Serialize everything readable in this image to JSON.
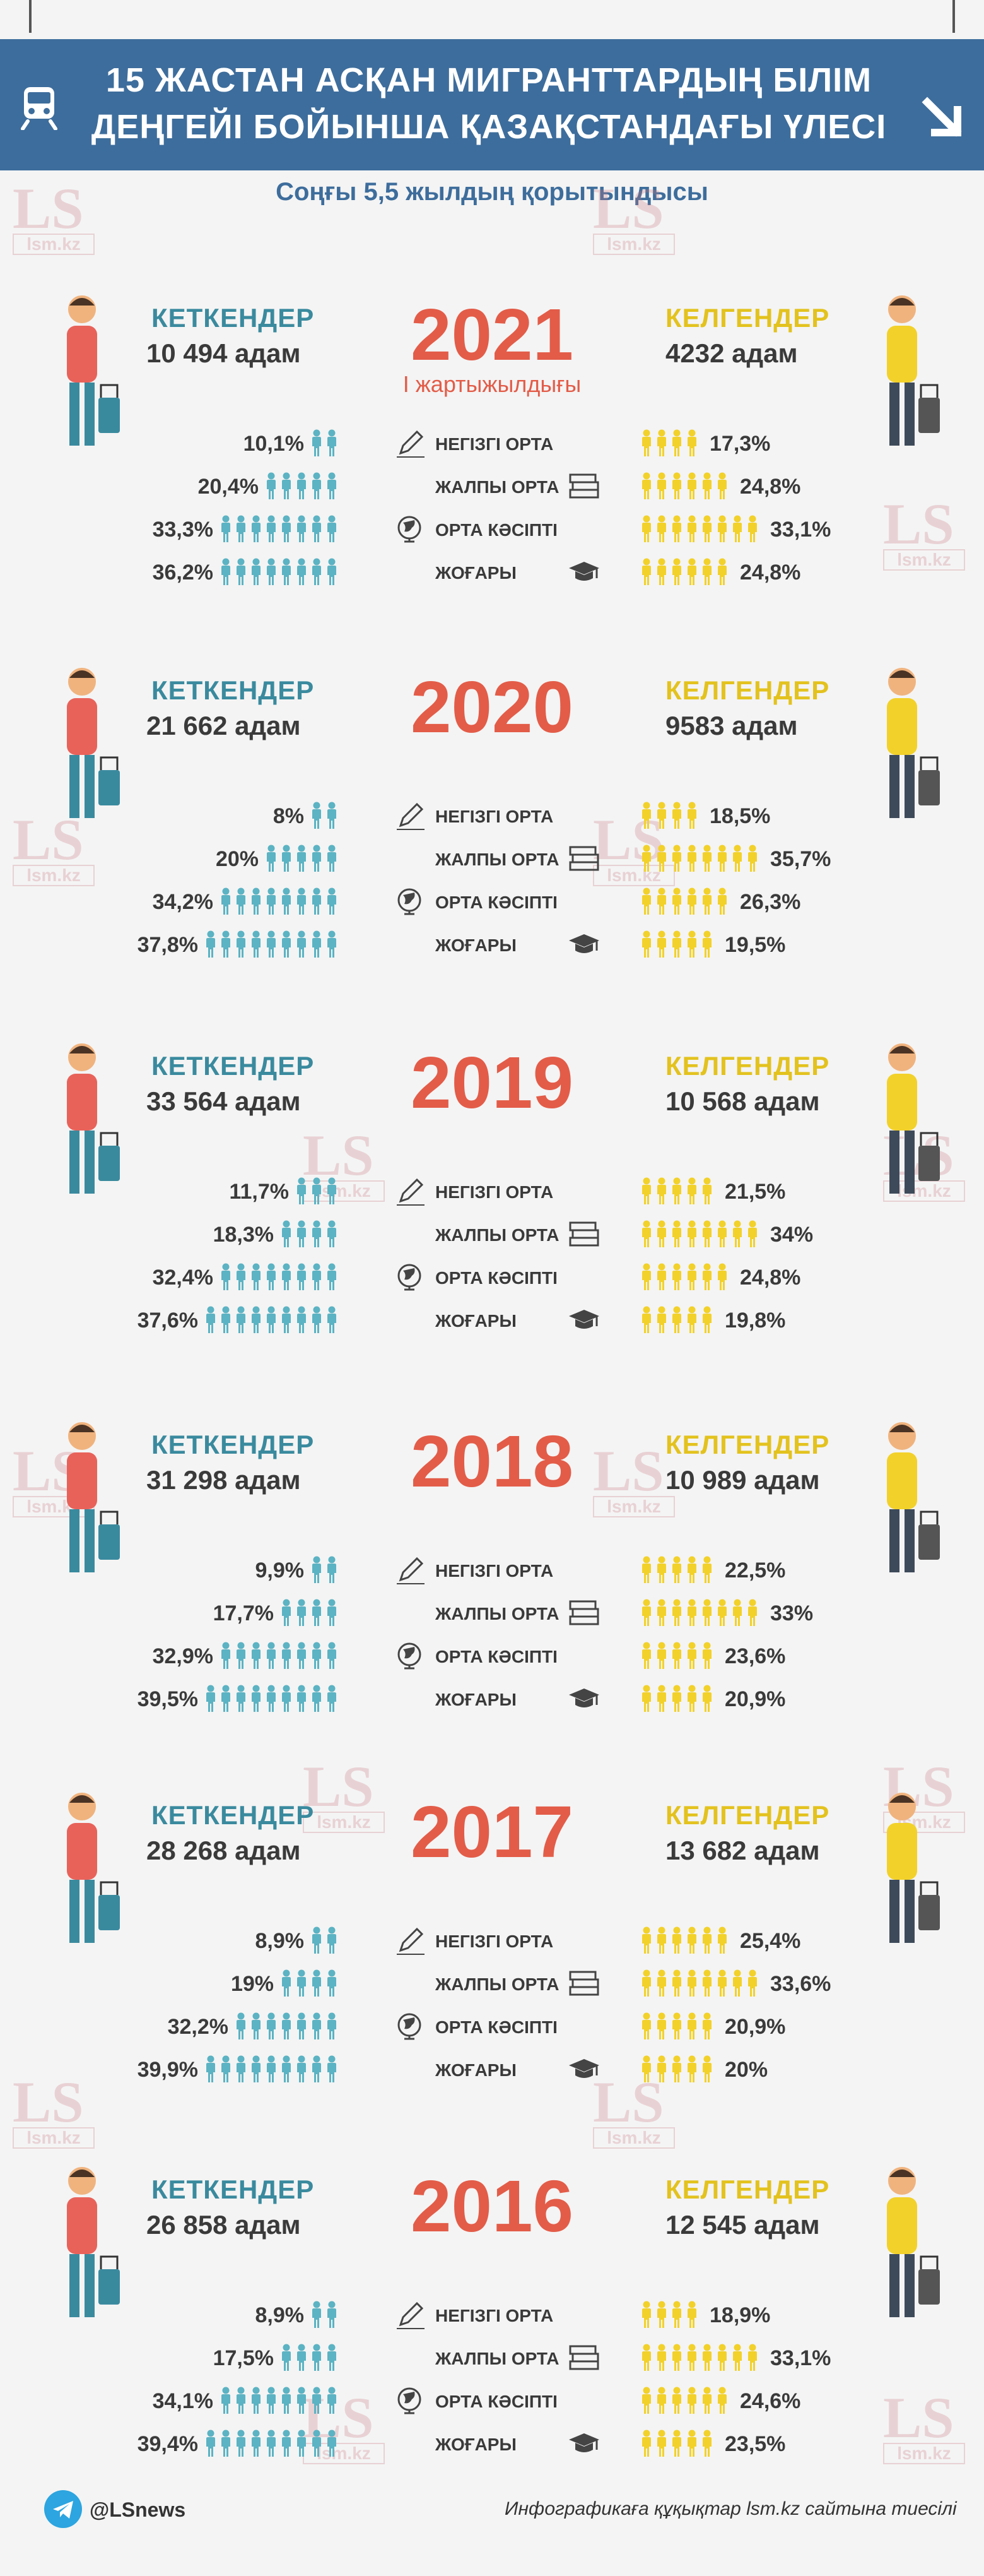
{
  "header": {
    "title_line1": "15 ЖАСТАН АСҚАН МИГРАНТТАРДЫҢ  БІЛІМ",
    "title_line2": "ДЕҢГЕЙІ БОЙЫНША ҚАЗАҚСТАНДАҒЫ ҮЛЕСІ",
    "subtitle": "Соңғы 5,5 жылдың қорытындысы",
    "train_icon": "train-icon",
    "arrow_icon": "arrow-down-right-icon",
    "color": "#3d6d9c"
  },
  "watermark": {
    "big": "LS",
    "small": "lsm.kz"
  },
  "labels": {
    "left_title": "КЕТКЕНДЕР",
    "right_title": "КЕЛГЕНДЕР",
    "categories": [
      "НЕГІЗГІ ОРТА",
      "ЖАЛПЫ ОРТА",
      "ОРТА КӘСІПТІ",
      "ЖОҒАРЫ"
    ],
    "category_icons": [
      "pencil-icon",
      "books-icon",
      "globe-icon",
      "graduation-cap-icon"
    ]
  },
  "colors": {
    "left": "#5bb3c3",
    "right": "#f2d12a",
    "year": "#e35c48",
    "left_title": "#3a8a9e",
    "right_title": "#e3c21e"
  },
  "chart_data": [
    {
      "type": "bar",
      "year": "2021",
      "note": "I жартыжылдығы",
      "left_count": "10 494 адам",
      "right_count": "4232 адам",
      "left": [
        10.1,
        20.4,
        33.3,
        36.2
      ],
      "left_labels": [
        "10,1%",
        "20,4%",
        "33,3%",
        "36,2%"
      ],
      "right": [
        17.3,
        24.8,
        33.1,
        24.8
      ],
      "right_labels": [
        "17,3%",
        "24,8%",
        "33,1%",
        "24,8%"
      ]
    },
    {
      "type": "bar",
      "year": "2020",
      "note": "",
      "left_count": "21 662 адам",
      "right_count": "9583 адам",
      "left": [
        8,
        20,
        34.2,
        37.8
      ],
      "left_labels": [
        "8%",
        "20%",
        "34,2%",
        "37,8%"
      ],
      "right": [
        18.5,
        35.7,
        26.3,
        19.5
      ],
      "right_labels": [
        "18,5%",
        "35,7%",
        "26,3%",
        "19,5%"
      ]
    },
    {
      "type": "bar",
      "year": "2019",
      "note": "",
      "left_count": "33 564 адам",
      "right_count": "10 568 адам",
      "left": [
        11.7,
        18.3,
        32.4,
        37.6
      ],
      "left_labels": [
        "11,7%",
        "18,3%",
        "32,4%",
        "37,6%"
      ],
      "right": [
        21.5,
        34,
        24.8,
        19.8
      ],
      "right_labels": [
        "21,5%",
        "34%",
        "24,8%",
        "19,8%"
      ]
    },
    {
      "type": "bar",
      "year": "2018",
      "note": "",
      "left_count": "31 298 адам",
      "right_count": "10 989 адам",
      "left": [
        9.9,
        17.7,
        32.9,
        39.5
      ],
      "left_labels": [
        "9,9%",
        "17,7%",
        "32,9%",
        "39,5%"
      ],
      "right": [
        22.5,
        33,
        23.6,
        20.9
      ],
      "right_labels": [
        "22,5%",
        "33%",
        "23,6%",
        "20,9%"
      ]
    },
    {
      "type": "bar",
      "year": "2017",
      "note": "",
      "left_count": "28 268 адам",
      "right_count": "13 682 адам",
      "left": [
        8.9,
        19,
        32.2,
        39.9
      ],
      "left_labels": [
        "8,9%",
        "19%",
        "32,2%",
        "39,9%"
      ],
      "right": [
        25.4,
        33.6,
        20.9,
        20
      ],
      "right_labels": [
        "25,4%",
        "33,6%",
        "20,9%",
        "20%"
      ]
    },
    {
      "type": "bar",
      "year": "2016",
      "note": "",
      "left_count": "26 858 адам",
      "right_count": "12 545 адам",
      "left": [
        8.9,
        17.5,
        34.1,
        39.4
      ],
      "left_labels": [
        "8,9%",
        "17,5%",
        "34,1%",
        "39,4%"
      ],
      "right": [
        18.9,
        33.1,
        24.6,
        23.5
      ],
      "right_labels": [
        "18,9%",
        "33,1%",
        "24,6%",
        "23,5%"
      ]
    }
  ],
  "footer": {
    "handle": "@LSnews",
    "telegram_icon": "telegram-icon",
    "credit": "Инфографикаға құқықтар lsm.kz сайтына тиесілі"
  }
}
